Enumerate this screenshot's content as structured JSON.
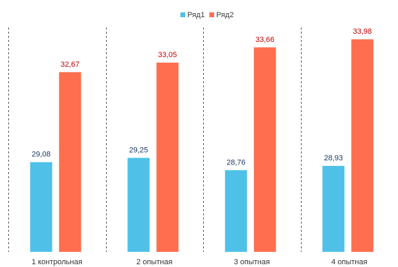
{
  "chart_data": {
    "type": "bar",
    "categories": [
      "1 контрольная",
      "2 опытная",
      "3 опытная",
      "4 опытная"
    ],
    "series": [
      {
        "name": "Ряд1",
        "color": "#4fc1e8",
        "label_color": "#1f3864",
        "values": [
          29.08,
          29.25,
          28.76,
          28.93
        ],
        "labels": [
          "29,08",
          "29,25",
          "28,76",
          "28,93"
        ]
      },
      {
        "name": "Ряд2",
        "color": "#ff6e4f",
        "label_color": "#c00000",
        "values": [
          32.67,
          33.05,
          33.66,
          33.98
        ],
        "labels": [
          "32,67",
          "33,05",
          "33,66",
          "33,98"
        ]
      }
    ],
    "ylim": [
      25.5,
      35.0
    ],
    "grid": false,
    "category_separators": "dashed-vertical",
    "legend_position": "top-center",
    "title": "",
    "xlabel": "",
    "ylabel": ""
  }
}
